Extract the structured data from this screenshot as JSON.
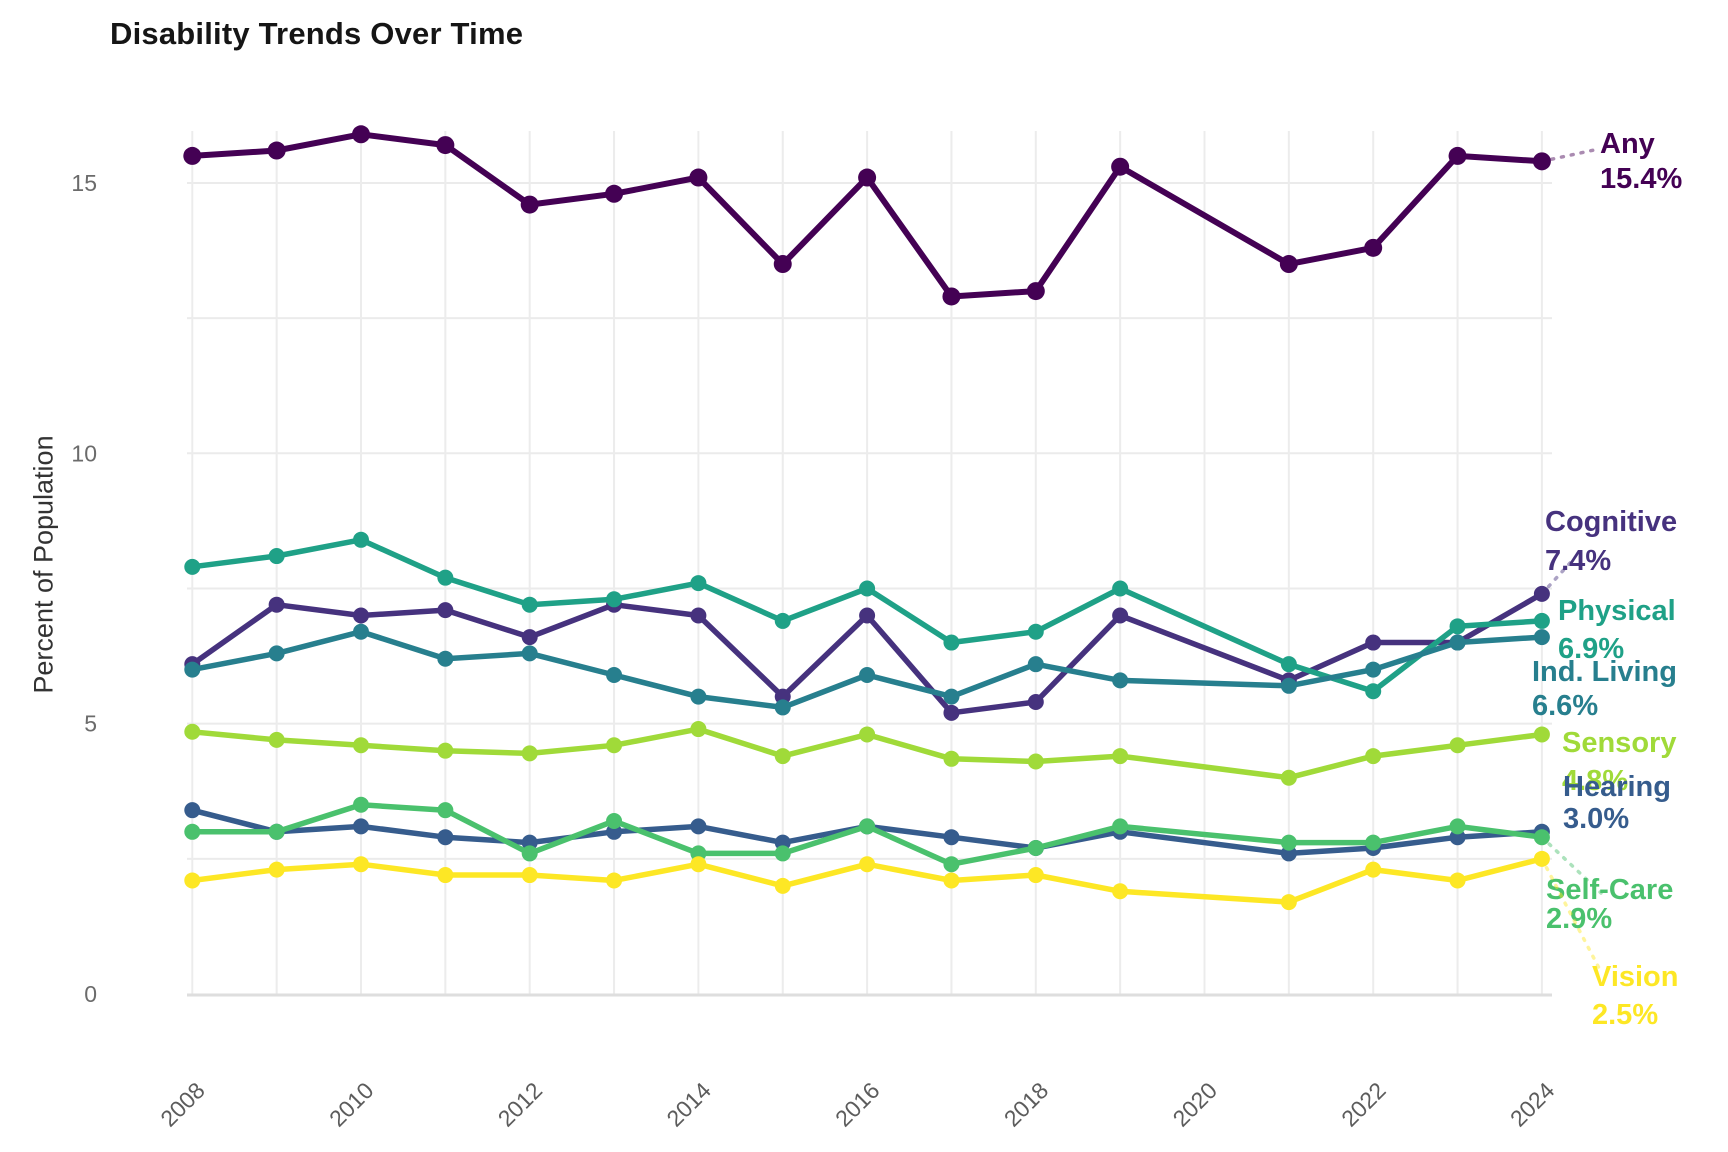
{
  "title": "Disability Trends Over Time",
  "y_axis": {
    "label": "Percent of Population",
    "ticks": [
      "0",
      "5",
      "10",
      "15"
    ]
  },
  "x_axis": {
    "ticks": [
      "2008",
      "2010",
      "2012",
      "2014",
      "2016",
      "2018",
      "2020",
      "2022",
      "2024"
    ]
  },
  "chart_data": {
    "type": "line",
    "title": "Disability Trends Over Time",
    "xlabel": "",
    "ylabel": "Percent of Population",
    "x": [
      2008,
      2009,
      2010,
      2011,
      2012,
      2013,
      2014,
      2015,
      2016,
      2017,
      2018,
      2019,
      2021,
      2022,
      2023,
      2024
    ],
    "x_note": "no data point for 2020",
    "x_tick_labels": [
      2008,
      2010,
      2012,
      2014,
      2016,
      2018,
      2020,
      2022,
      2024
    ],
    "y_ticks": [
      0,
      5,
      10,
      15
    ],
    "ylim": [
      0,
      16
    ],
    "grid": {
      "horizontal_step": 2.5,
      "vertical_step_years": 1,
      "color": "light-gray"
    },
    "legend_position": "right-edge-direct-labels",
    "series": [
      {
        "id": "any",
        "name": "Any",
        "color": "#440154",
        "end_label": "15.4%",
        "values": [
          15.5,
          15.6,
          15.9,
          15.7,
          14.6,
          14.8,
          15.1,
          13.5,
          15.1,
          12.9,
          13.0,
          15.3,
          13.5,
          13.8,
          15.5,
          15.4
        ]
      },
      {
        "id": "cognitive",
        "name": "Cognitive",
        "color": "#46327e",
        "end_label": "7.4%",
        "values": [
          6.1,
          7.2,
          7.0,
          7.1,
          6.6,
          7.2,
          7.0,
          5.5,
          7.0,
          5.2,
          5.4,
          7.0,
          5.8,
          6.5,
          6.5,
          7.4
        ]
      },
      {
        "id": "physical",
        "name": "Physical",
        "color": "#1fa187",
        "end_label": "6.9%",
        "values": [
          7.9,
          8.1,
          8.4,
          7.7,
          7.2,
          7.3,
          7.6,
          6.9,
          7.5,
          6.5,
          6.7,
          7.5,
          6.1,
          5.6,
          6.8,
          6.9
        ]
      },
      {
        "id": "indliving",
        "name": "Ind. Living",
        "color": "#277f8e",
        "end_label": "6.6%",
        "values": [
          6.0,
          6.3,
          6.7,
          6.2,
          6.3,
          5.9,
          5.5,
          5.3,
          5.9,
          5.5,
          6.1,
          5.8,
          5.7,
          6.0,
          6.5,
          6.6
        ]
      },
      {
        "id": "sensory",
        "name": "Sensory",
        "color": "#a0da39",
        "end_label": "4.8%",
        "values": [
          4.85,
          4.7,
          4.6,
          4.5,
          4.45,
          4.6,
          4.9,
          4.4,
          4.8,
          4.35,
          4.3,
          4.4,
          4.0,
          4.4,
          4.6,
          4.8
        ]
      },
      {
        "id": "hearing",
        "name": "Hearing",
        "color": "#365c8d",
        "end_label": "3.0%",
        "values": [
          3.4,
          3.0,
          3.1,
          2.9,
          2.8,
          3.0,
          3.1,
          2.8,
          3.1,
          2.9,
          2.7,
          3.0,
          2.6,
          2.7,
          2.9,
          3.0
        ]
      },
      {
        "id": "selfcare",
        "name": "Self-Care",
        "color": "#4ac16d",
        "end_label": "2.9%",
        "values": [
          3.0,
          3.0,
          3.5,
          3.4,
          2.6,
          3.2,
          2.6,
          2.6,
          3.1,
          2.4,
          2.7,
          3.1,
          2.8,
          2.8,
          3.1,
          2.9
        ]
      },
      {
        "id": "vision",
        "name": "Vision",
        "color": "#fde725",
        "end_label": "2.5%",
        "values": [
          2.1,
          2.3,
          2.4,
          2.2,
          2.2,
          2.1,
          2.4,
          2.0,
          2.4,
          2.1,
          2.2,
          1.9,
          1.7,
          2.3,
          2.1,
          2.5
        ]
      }
    ]
  }
}
